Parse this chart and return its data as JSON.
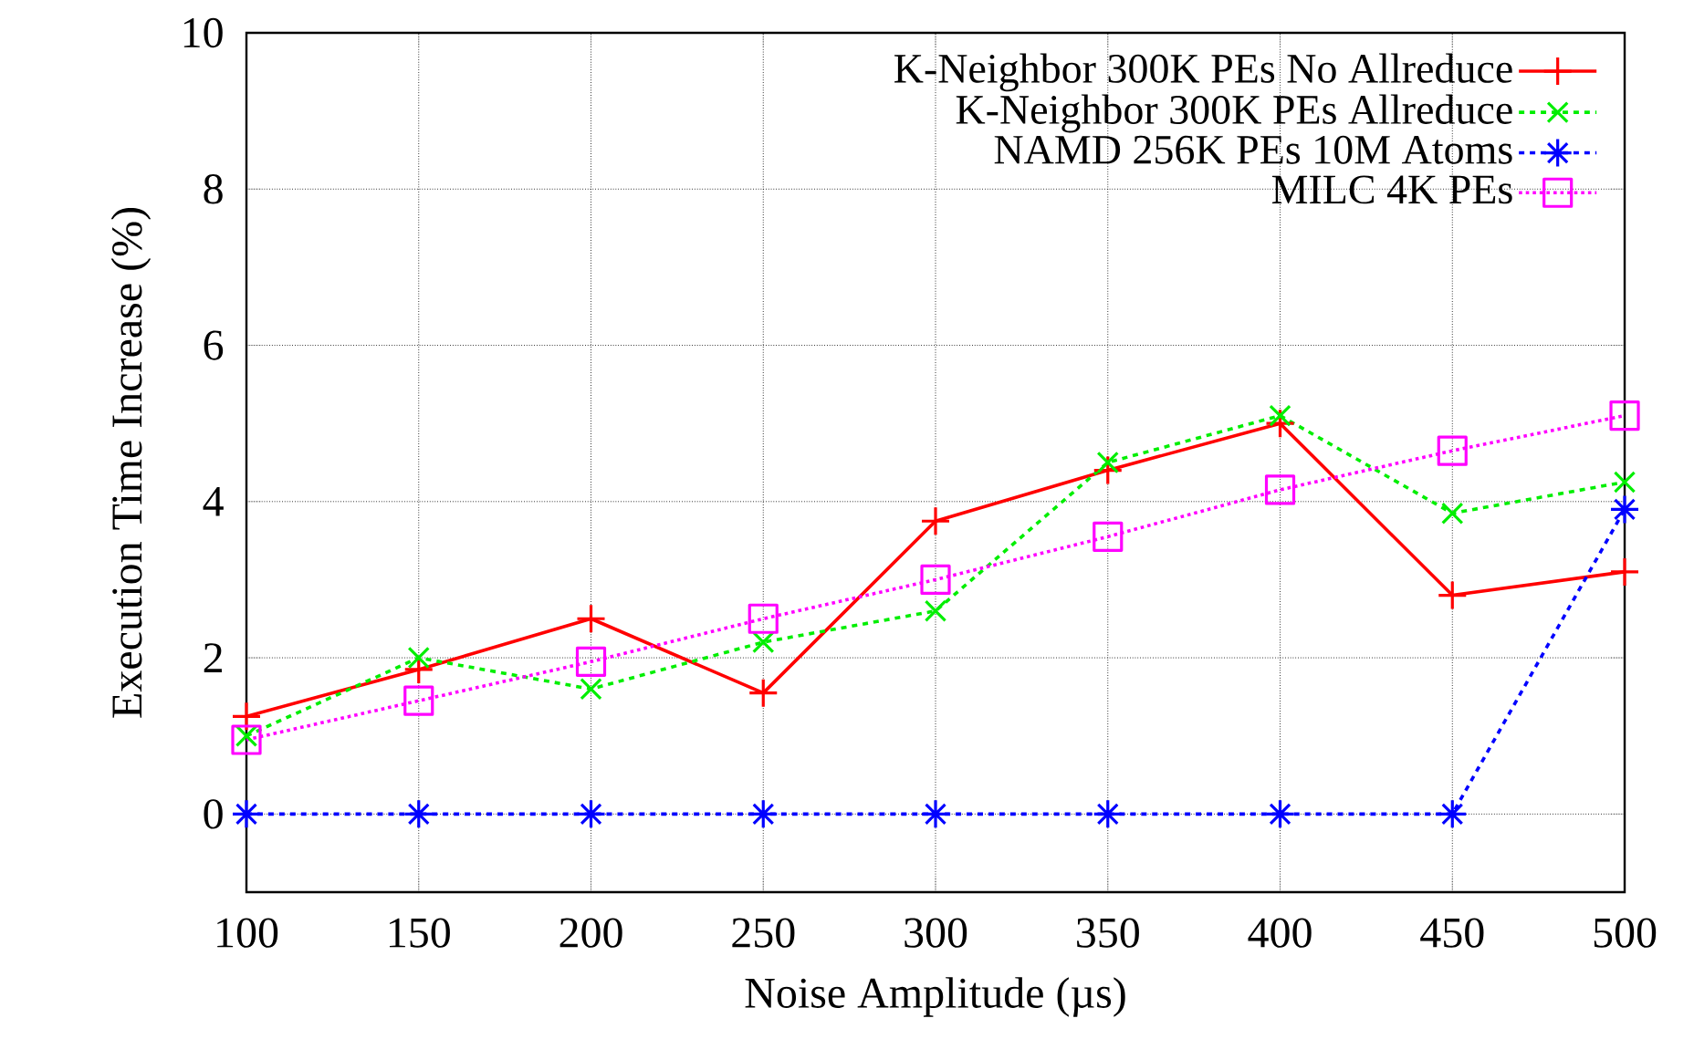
{
  "chart_data": {
    "type": "line",
    "xlabel": "Noise Amplitude (µs)",
    "ylabel": "Execution Time Increase (%)",
    "x": [
      100,
      150,
      200,
      250,
      300,
      350,
      400,
      450,
      500
    ],
    "xlim": [
      100,
      500
    ],
    "xticks": [
      100,
      150,
      200,
      250,
      300,
      350,
      400,
      450,
      500
    ],
    "ylim": [
      -1,
      10
    ],
    "yticks": [
      0,
      2,
      4,
      6,
      8,
      10
    ],
    "grid": true,
    "legend": "top right",
    "series": [
      {
        "name": "K-Neighbor 300K PEs No Allreduce",
        "color": "#ff0000",
        "marker": "plus",
        "line_style": "solid",
        "values": [
          1.25,
          1.85,
          2.5,
          1.55,
          3.75,
          4.4,
          5.0,
          2.8,
          3.1
        ]
      },
      {
        "name": "K-Neighbor 300K PEs Allreduce",
        "color": "#00ee00",
        "marker": "x",
        "line_style": "dashed",
        "values": [
          1.0,
          2.0,
          1.6,
          2.2,
          2.6,
          4.5,
          5.1,
          3.85,
          4.25
        ]
      },
      {
        "name": "NAMD 256K PEs 10M Atoms",
        "color": "#0000ff",
        "marker": "cross",
        "line_style": "dashed",
        "values": [
          0,
          0,
          0,
          0,
          0,
          0,
          0,
          0,
          3.9
        ]
      },
      {
        "name": "MILC 4K PEs",
        "color": "#ff00ff",
        "marker": "square",
        "line_style": "dotted",
        "values": [
          0.95,
          1.45,
          1.95,
          2.5,
          3.0,
          3.55,
          4.15,
          4.65,
          5.1
        ]
      }
    ]
  }
}
